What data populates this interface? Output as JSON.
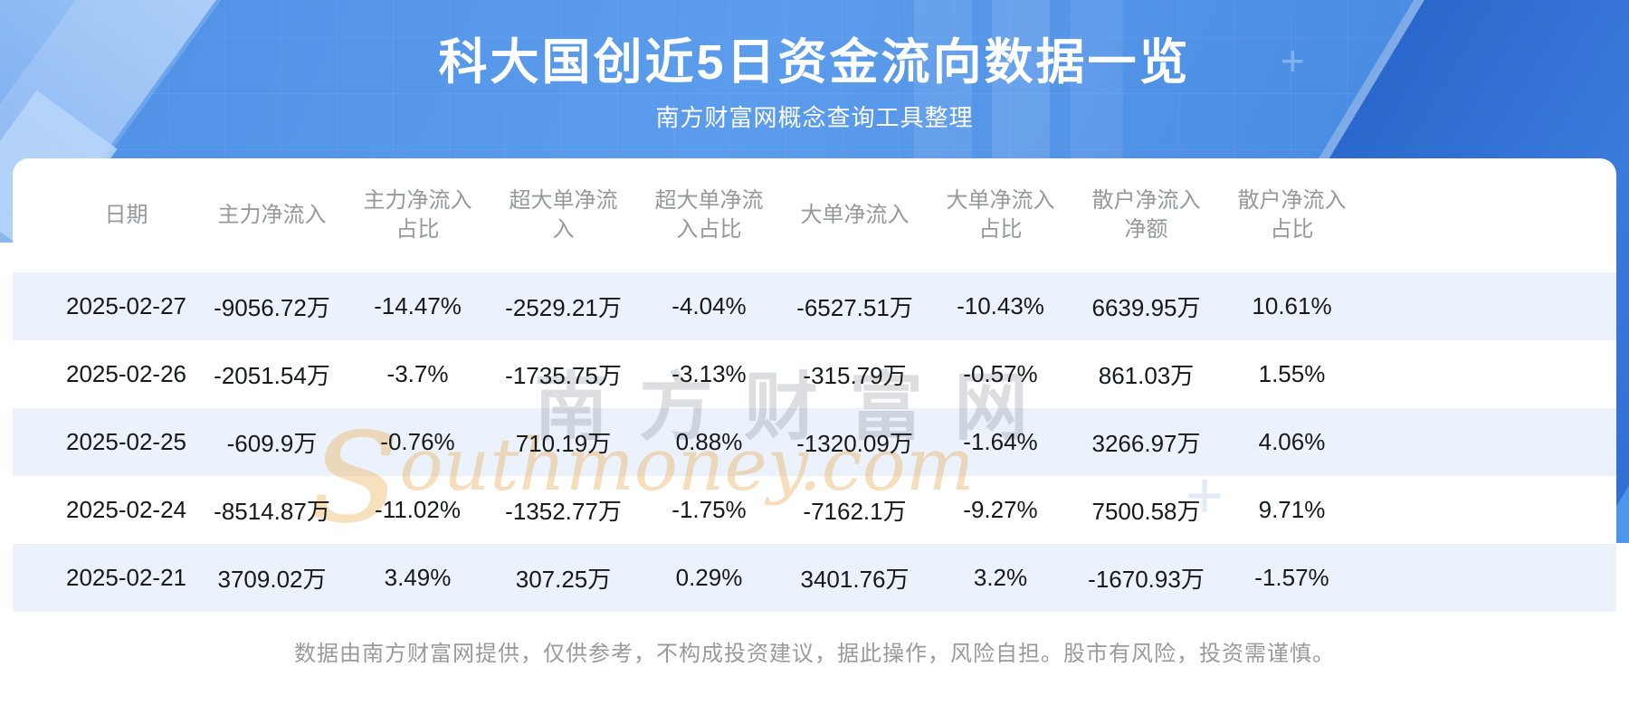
{
  "header": {
    "title": "科大国创近5日资金流向数据一览",
    "subtitle": "南方财富网概念查询工具整理"
  },
  "chart_data": {
    "type": "table",
    "title": "科大国创近5日资金流向数据一览",
    "subtitle": "南方财富网概念查询工具整理",
    "columns": [
      "日期",
      "主力净流入",
      "主力净流入占比",
      "超大单净流入",
      "超大单净流入占比",
      "大单净流入",
      "大单净流入占比",
      "散户净流入净额",
      "散户净流入占比"
    ],
    "rows": [
      [
        "2025-02-27",
        "-9056.72万",
        "-14.47%",
        "-2529.21万",
        "-4.04%",
        "-6527.51万",
        "-10.43%",
        "6639.95万",
        "10.61%"
      ],
      [
        "2025-02-26",
        "-2051.54万",
        "-3.7%",
        "-1735.75万",
        "-3.13%",
        "-315.79万",
        "-0.57%",
        "861.03万",
        "1.55%"
      ],
      [
        "2025-02-25",
        "-609.9万",
        "-0.76%",
        "710.19万",
        "0.88%",
        "-1320.09万",
        "-1.64%",
        "3266.97万",
        "4.06%"
      ],
      [
        "2025-02-24",
        "-8514.87万",
        "-11.02%",
        "-1352.77万",
        "-1.75%",
        "-7162.1万",
        "-9.27%",
        "7500.58万",
        "9.71%"
      ],
      [
        "2025-02-21",
        "3709.02万",
        "3.49%",
        "307.25万",
        "0.29%",
        "3401.76万",
        "3.2%",
        "-1670.93万",
        "-1.57%"
      ]
    ]
  },
  "watermark": {
    "cn": "南方财富网",
    "en": "southmoney.com"
  },
  "footer": {
    "disclaimer": "数据由南方财富网提供，仅供参考，不构成投资建议，据此操作，风险自担。股市有风险，投资需谨慎。"
  },
  "colors": {
    "hero_blue": "#4f90e6",
    "hero_blue_dark": "#2b68cb",
    "row_alt_blue": "#ebf2fc",
    "header_text": "#97989c",
    "cell_text": "#17181a",
    "title_text": "#ffffff",
    "footer_text": "#9a9a9a",
    "watermark_orange": "#e8ac58",
    "watermark_gray": "#78808c"
  }
}
